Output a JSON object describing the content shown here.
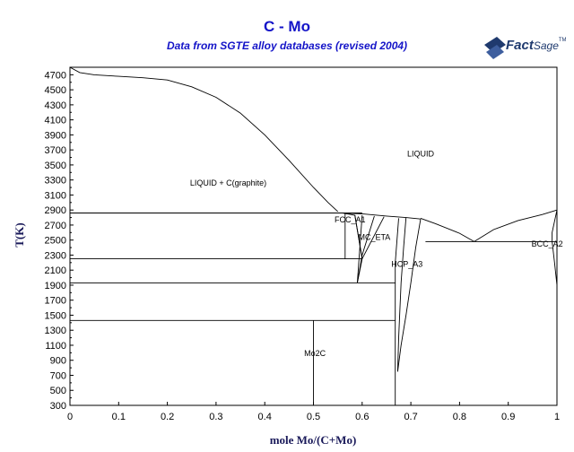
{
  "chart_data": {
    "type": "line",
    "title": "C - Mo",
    "subtitle": "Data from SGTE alloy databases (revised 2004)",
    "brand": {
      "name_bold": "Fact",
      "name_light": "Sage",
      "mark": "TM",
      "color": "#1f3a6e"
    },
    "xlabel": "mole Mo/(C+Mo)",
    "ylabel": "T(K)",
    "xlim": [
      0,
      1
    ],
    "ylim": [
      300,
      4800
    ],
    "xticks": [
      0,
      0.1,
      0.2,
      0.3,
      0.4,
      0.5,
      0.6,
      0.7,
      0.8,
      0.9,
      1
    ],
    "xtick_labels": [
      "0",
      "0.1",
      "0.2",
      "0.3",
      "0.4",
      "0.5",
      "0.6",
      "0.7",
      "0.8",
      "0.9",
      "1"
    ],
    "yticks": [
      300,
      500,
      700,
      900,
      1100,
      1300,
      1500,
      1700,
      1900,
      2100,
      2300,
      2500,
      2700,
      2900,
      3100,
      3300,
      3500,
      3700,
      3900,
      4100,
      4300,
      4500,
      4700
    ],
    "ytick_labels": [
      "300",
      "500",
      "700",
      "900",
      "1100",
      "1300",
      "1500",
      "1700",
      "1900",
      "2100",
      "2300",
      "2500",
      "2700",
      "2900",
      "3100",
      "3300",
      "3500",
      "3700",
      "3900",
      "4100",
      "4300",
      "4500",
      "4700"
    ],
    "grid": false,
    "line_color": "#000000",
    "title_color": "#1414c8",
    "regions": [
      {
        "label": "LIQUID",
        "x": 0.72,
        "y": 3650
      },
      {
        "label": "LIQUID + C(graphite)",
        "x": 0.325,
        "y": 3260
      },
      {
        "label": "FCC_A1",
        "x": 0.575,
        "y": 2770
      },
      {
        "label": "MC_ETA",
        "x": 0.625,
        "y": 2540
      },
      {
        "label": "HCP_A3",
        "x": 0.692,
        "y": 2180
      },
      {
        "label": "BCC_A2",
        "x": 0.98,
        "y": 2450
      },
      {
        "label": "Mo2C",
        "x": 0.503,
        "y": 990
      }
    ],
    "series": [
      {
        "id": "liquidus-c",
        "points": [
          [
            0,
            4800
          ],
          [
            0.02,
            4730
          ],
          [
            0.05,
            4700
          ],
          [
            0.1,
            4680
          ],
          [
            0.15,
            4660
          ],
          [
            0.2,
            4630
          ],
          [
            0.25,
            4540
          ],
          [
            0.3,
            4400
          ],
          [
            0.35,
            4190
          ],
          [
            0.4,
            3900
          ],
          [
            0.45,
            3560
          ],
          [
            0.5,
            3200
          ],
          [
            0.53,
            3000
          ],
          [
            0.55,
            2880
          ]
        ]
      },
      {
        "id": "liquidus-mid",
        "points": [
          [
            0.56,
            2860
          ],
          [
            0.6,
            2850
          ],
          [
            0.65,
            2820
          ],
          [
            0.69,
            2800
          ],
          [
            0.72,
            2780
          ]
        ]
      },
      {
        "id": "liquidus-hcp",
        "points": [
          [
            0.72,
            2790
          ],
          [
            0.75,
            2720
          ],
          [
            0.8,
            2590
          ],
          [
            0.83,
            2480
          ]
        ]
      },
      {
        "id": "liquidus-bcc",
        "points": [
          [
            0.83,
            2480
          ],
          [
            0.87,
            2640
          ],
          [
            0.92,
            2760
          ],
          [
            0.97,
            2840
          ],
          [
            1,
            2900
          ]
        ]
      },
      {
        "id": "eutectic-c-fcc",
        "points": [
          [
            0,
            2860
          ],
          [
            0.6,
            2860
          ]
        ]
      },
      {
        "id": "eutectoid-fcc",
        "points": [
          [
            0,
            2250
          ],
          [
            0.6,
            2250
          ]
        ]
      },
      {
        "id": "eutectoid-1930",
        "points": [
          [
            0,
            1930
          ],
          [
            0.668,
            1930
          ]
        ]
      },
      {
        "id": "eutectoid-1430",
        "points": [
          [
            0,
            1430
          ],
          [
            0.668,
            1430
          ]
        ]
      },
      {
        "id": "eutectic-hcp-bcc",
        "points": [
          [
            0.73,
            2480
          ],
          [
            1,
            2480
          ]
        ]
      },
      {
        "id": "fcc-left",
        "points": [
          [
            0.565,
            2860
          ],
          [
            0.565,
            2250
          ]
        ]
      },
      {
        "id": "fcc-right",
        "points": [
          [
            0.56,
            2860
          ],
          [
            0.585,
            2830
          ],
          [
            0.6,
            2250
          ]
        ]
      },
      {
        "id": "eta-left",
        "points": [
          [
            0.585,
            2830
          ],
          [
            0.6,
            2250
          ],
          [
            0.59,
            1930
          ]
        ]
      },
      {
        "id": "eta-mid",
        "points": [
          [
            0.6,
            2830
          ],
          [
            0.59,
            1930
          ]
        ]
      },
      {
        "id": "eta-right",
        "points": [
          [
            0.625,
            2820
          ],
          [
            0.6,
            2300
          ],
          [
            0.59,
            1930
          ]
        ]
      },
      {
        "id": "eta-far",
        "points": [
          [
            0.645,
            2810
          ],
          [
            0.6,
            2250
          ]
        ]
      },
      {
        "id": "hcp-left",
        "points": [
          [
            0.675,
            2790
          ],
          [
            0.668,
            2200
          ],
          [
            0.668,
            1930
          ],
          [
            0.668,
            300
          ]
        ]
      },
      {
        "id": "hcp-mid",
        "points": [
          [
            0.69,
            2800
          ],
          [
            0.685,
            2400
          ],
          [
            0.68,
            1930
          ],
          [
            0.675,
            1200
          ],
          [
            0.673,
            750
          ]
        ]
      },
      {
        "id": "hcp-right",
        "points": [
          [
            0.72,
            2780
          ],
          [
            0.71,
            2400
          ],
          [
            0.7,
            1930
          ],
          [
            0.69,
            1500
          ],
          [
            0.68,
            1100
          ],
          [
            0.673,
            750
          ]
        ]
      },
      {
        "id": "mo2c-vertical",
        "points": [
          [
            0.5,
            1430
          ],
          [
            0.5,
            300
          ]
        ]
      },
      {
        "id": "bcc-solvus",
        "points": [
          [
            1,
            2900
          ],
          [
            0.99,
            2600
          ],
          [
            0.99,
            2480
          ],
          [
            0.995,
            2200
          ],
          [
            1,
            1900
          ]
        ]
      }
    ]
  }
}
